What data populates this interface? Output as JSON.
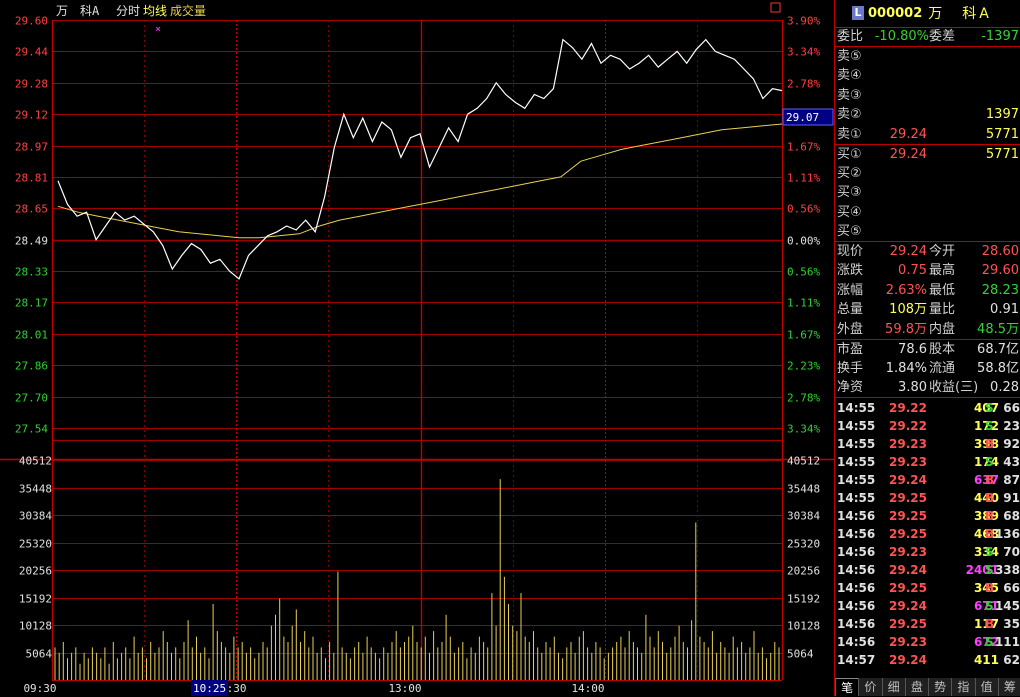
{
  "chart_header": {
    "name": "万　科A",
    "tab_time": "分时",
    "legend_avg": "均线",
    "legend_vol": "成交量",
    "marker": "×"
  },
  "chart_data": {
    "type": "line",
    "price_ticks": [
      "29.60",
      "29.44",
      "29.28",
      "29.12",
      "28.97",
      "28.81",
      "28.65",
      "28.49",
      "28.33",
      "28.17",
      "28.01",
      "27.86",
      "27.70",
      "27.54"
    ],
    "pct_ticks": [
      "3.90%",
      "3.34%",
      "2.78%",
      "2.23%",
      "1.67%",
      "1.11%",
      "0.56%",
      "0.00%",
      "0.56%",
      "1.11%",
      "1.67%",
      "2.23%",
      "2.78%",
      "3.34%"
    ],
    "vol_ticks": [
      "40512",
      "35448",
      "30384",
      "25320",
      "20256",
      "15192",
      "10128",
      "5064"
    ],
    "time_labels": [
      "09:30",
      "10:30",
      "13:00",
      "14:00"
    ],
    "cursor_time": "10:25",
    "current_price_label": "29.07",
    "price_range": [
      27.46,
      29.6
    ],
    "price": [
      28.78,
      28.66,
      28.6,
      28.62,
      28.48,
      28.55,
      28.62,
      28.58,
      28.6,
      28.56,
      28.52,
      28.45,
      28.33,
      28.4,
      28.46,
      28.43,
      28.36,
      28.38,
      28.32,
      28.28,
      28.4,
      28.45,
      28.5,
      28.52,
      28.55,
      28.53,
      28.58,
      28.52,
      28.7,
      28.95,
      29.12,
      29.0,
      29.1,
      28.98,
      29.08,
      29.04,
      28.9,
      29.0,
      29.02,
      28.85,
      28.95,
      29.05,
      28.98,
      29.12,
      29.15,
      29.2,
      29.28,
      29.22,
      29.18,
      29.15,
      29.22,
      29.2,
      29.25,
      29.5,
      29.46,
      29.4,
      29.48,
      29.38,
      29.42,
      29.4,
      29.35,
      29.38,
      29.42,
      29.36,
      29.4,
      29.44,
      29.38,
      29.45,
      29.5,
      29.44,
      29.42,
      29.4,
      29.35,
      29.3,
      29.2,
      29.25,
      29.24
    ],
    "avg": [
      28.65,
      28.62,
      28.6,
      28.58,
      28.56,
      28.54,
      28.52,
      28.51,
      28.5,
      28.49,
      28.49,
      28.5,
      28.51,
      28.55,
      28.58,
      28.6,
      28.62,
      28.64,
      28.66,
      28.68,
      28.7,
      28.72,
      28.74,
      28.76,
      28.78,
      28.8,
      28.88,
      28.91,
      28.94,
      28.96,
      28.98,
      29.0,
      29.02,
      29.04,
      29.05,
      29.06,
      29.07
    ],
    "vol_max": 40512,
    "volume": [
      6,
      5,
      7,
      4,
      5,
      6,
      3,
      5,
      4,
      6,
      5,
      4,
      6,
      3,
      7,
      4,
      5,
      6,
      4,
      8,
      5,
      6,
      4,
      7,
      5,
      6,
      9,
      7,
      5,
      6,
      4,
      7,
      11,
      6,
      8,
      5,
      6,
      4,
      14,
      9,
      7,
      6,
      5,
      8,
      6,
      7,
      5,
      6,
      4,
      5,
      7,
      6,
      10,
      12,
      15,
      8,
      7,
      10,
      13,
      7,
      9,
      6,
      8,
      5,
      6,
      4,
      7,
      5,
      20,
      6,
      5,
      4,
      6,
      7,
      5,
      8,
      6,
      5,
      4,
      6,
      5,
      7,
      9,
      6,
      7,
      8,
      10,
      7,
      6,
      8,
      5,
      9,
      6,
      7,
      12,
      8,
      5,
      6,
      7,
      4,
      6,
      5,
      8,
      7,
      6,
      16,
      10,
      37,
      19,
      14,
      10,
      9,
      16,
      8,
      7,
      9,
      6,
      5,
      7,
      6,
      8,
      5,
      4,
      6,
      7,
      5,
      8,
      9,
      6,
      5,
      7,
      6,
      4,
      5,
      6,
      7,
      8,
      6,
      9,
      7,
      6,
      5,
      12,
      8,
      6,
      9,
      7,
      5,
      6,
      8,
      10,
      7,
      6,
      11,
      29,
      8,
      7,
      6,
      9,
      5,
      7,
      6,
      5,
      8,
      6,
      7,
      5,
      6,
      9,
      5,
      6,
      4,
      5,
      7,
      6
    ]
  },
  "quote": {
    "code": "000002",
    "name": "万　科A",
    "weibi_label": "委比",
    "weibi": "-10.80%",
    "weicha_label": "委差",
    "weicha": "-1397",
    "sell": [
      {
        "label": "卖⑤",
        "price": "",
        "vol": ""
      },
      {
        "label": "卖④",
        "price": "",
        "vol": ""
      },
      {
        "label": "卖③",
        "price": "",
        "vol": ""
      },
      {
        "label": "卖②",
        "price": "",
        "vol": "1397"
      },
      {
        "label": "卖①",
        "price": "29.24",
        "vol": "5771"
      }
    ],
    "buy": [
      {
        "label": "买①",
        "price": "29.24",
        "vol": "5771"
      },
      {
        "label": "买②",
        "price": "",
        "vol": ""
      },
      {
        "label": "买③",
        "price": "",
        "vol": ""
      },
      {
        "label": "买④",
        "price": "",
        "vol": ""
      },
      {
        "label": "买⑤",
        "price": "",
        "vol": ""
      }
    ],
    "stats1": [
      {
        "l1": "现价",
        "v1": "29.24",
        "c1": "red",
        "l2": "今开",
        "v2": "28.60",
        "c2": "red"
      },
      {
        "l1": "涨跌",
        "v1": "0.75",
        "c1": "red",
        "l2": "最高",
        "v2": "29.60",
        "c2": "red"
      },
      {
        "l1": "涨幅",
        "v1": "2.63%",
        "c1": "red",
        "l2": "最低",
        "v2": "28.23",
        "c2": "green"
      },
      {
        "l1": "总量",
        "v1": "108万",
        "c1": "yel",
        "l2": "量比",
        "v2": "0.91",
        "c2": "wht"
      },
      {
        "l1": "外盘",
        "v1": "59.8万",
        "c1": "red",
        "l2": "内盘",
        "v2": "48.5万",
        "c2": "green"
      }
    ],
    "stats2": [
      {
        "l1": "市盈",
        "v1": "78.6",
        "c1": "wht",
        "l2": "股本",
        "v2": "68.7亿",
        "c2": "wht"
      },
      {
        "l1": "换手",
        "v1": "1.84%",
        "c1": "wht",
        "l2": "流通",
        "v2": "58.8亿",
        "c2": "wht"
      },
      {
        "l1": "净资",
        "v1": "3.80",
        "c1": "wht",
        "l2": "收益(三)",
        "v2": "0.28",
        "c2": "wht"
      }
    ],
    "ticks": [
      {
        "t": "14:55",
        "p": "29.22",
        "pc": "red",
        "q": "407",
        "qc": "yel",
        "s": "S",
        "sc": "green",
        "n": "66"
      },
      {
        "t": "14:55",
        "p": "29.22",
        "pc": "red",
        "q": "172",
        "qc": "yel",
        "s": "S",
        "sc": "green",
        "n": "23"
      },
      {
        "t": "14:55",
        "p": "29.23",
        "pc": "red",
        "q": "398",
        "qc": "yel",
        "s": "B",
        "sc": "red",
        "n": "92"
      },
      {
        "t": "14:55",
        "p": "29.23",
        "pc": "red",
        "q": "174",
        "qc": "yel",
        "s": "S",
        "sc": "green",
        "n": "43"
      },
      {
        "t": "14:55",
        "p": "29.24",
        "pc": "red",
        "q": "637",
        "qc": "mag",
        "s": "B",
        "sc": "red",
        "n": "87"
      },
      {
        "t": "14:55",
        "p": "29.25",
        "pc": "red",
        "q": "440",
        "qc": "yel",
        "s": "B",
        "sc": "red",
        "n": "91"
      },
      {
        "t": "14:56",
        "p": "29.25",
        "pc": "red",
        "q": "389",
        "qc": "yel",
        "s": "B",
        "sc": "red",
        "n": "68"
      },
      {
        "t": "14:56",
        "p": "29.25",
        "pc": "red",
        "q": "468",
        "qc": "yel",
        "s": "B",
        "sc": "red",
        "n": "136"
      },
      {
        "t": "14:56",
        "p": "29.23",
        "pc": "red",
        "q": "334",
        "qc": "yel",
        "s": "S",
        "sc": "green",
        "n": "70"
      },
      {
        "t": "14:56",
        "p": "29.24",
        "pc": "red",
        "q": "2401",
        "qc": "mag",
        "s": "S",
        "sc": "green",
        "n": "338"
      },
      {
        "t": "14:56",
        "p": "29.25",
        "pc": "red",
        "q": "345",
        "qc": "yel",
        "s": "B",
        "sc": "red",
        "n": "66"
      },
      {
        "t": "14:56",
        "p": "29.24",
        "pc": "red",
        "q": "671",
        "qc": "mag",
        "s": "S",
        "sc": "green",
        "n": "145"
      },
      {
        "t": "14:56",
        "p": "29.25",
        "pc": "red",
        "q": "117",
        "qc": "yel",
        "s": "B",
        "sc": "red",
        "n": "35"
      },
      {
        "t": "14:56",
        "p": "29.23",
        "pc": "red",
        "q": "672",
        "qc": "mag",
        "s": "S",
        "sc": "green",
        "n": "111"
      },
      {
        "t": "14:57",
        "p": "29.24",
        "pc": "red",
        "q": "411",
        "qc": "yel",
        "s": "",
        "sc": "green",
        "n": "62"
      }
    ],
    "tabs": [
      "笔",
      "价",
      "细",
      "盘",
      "势",
      "指",
      "值",
      "筹"
    ]
  }
}
